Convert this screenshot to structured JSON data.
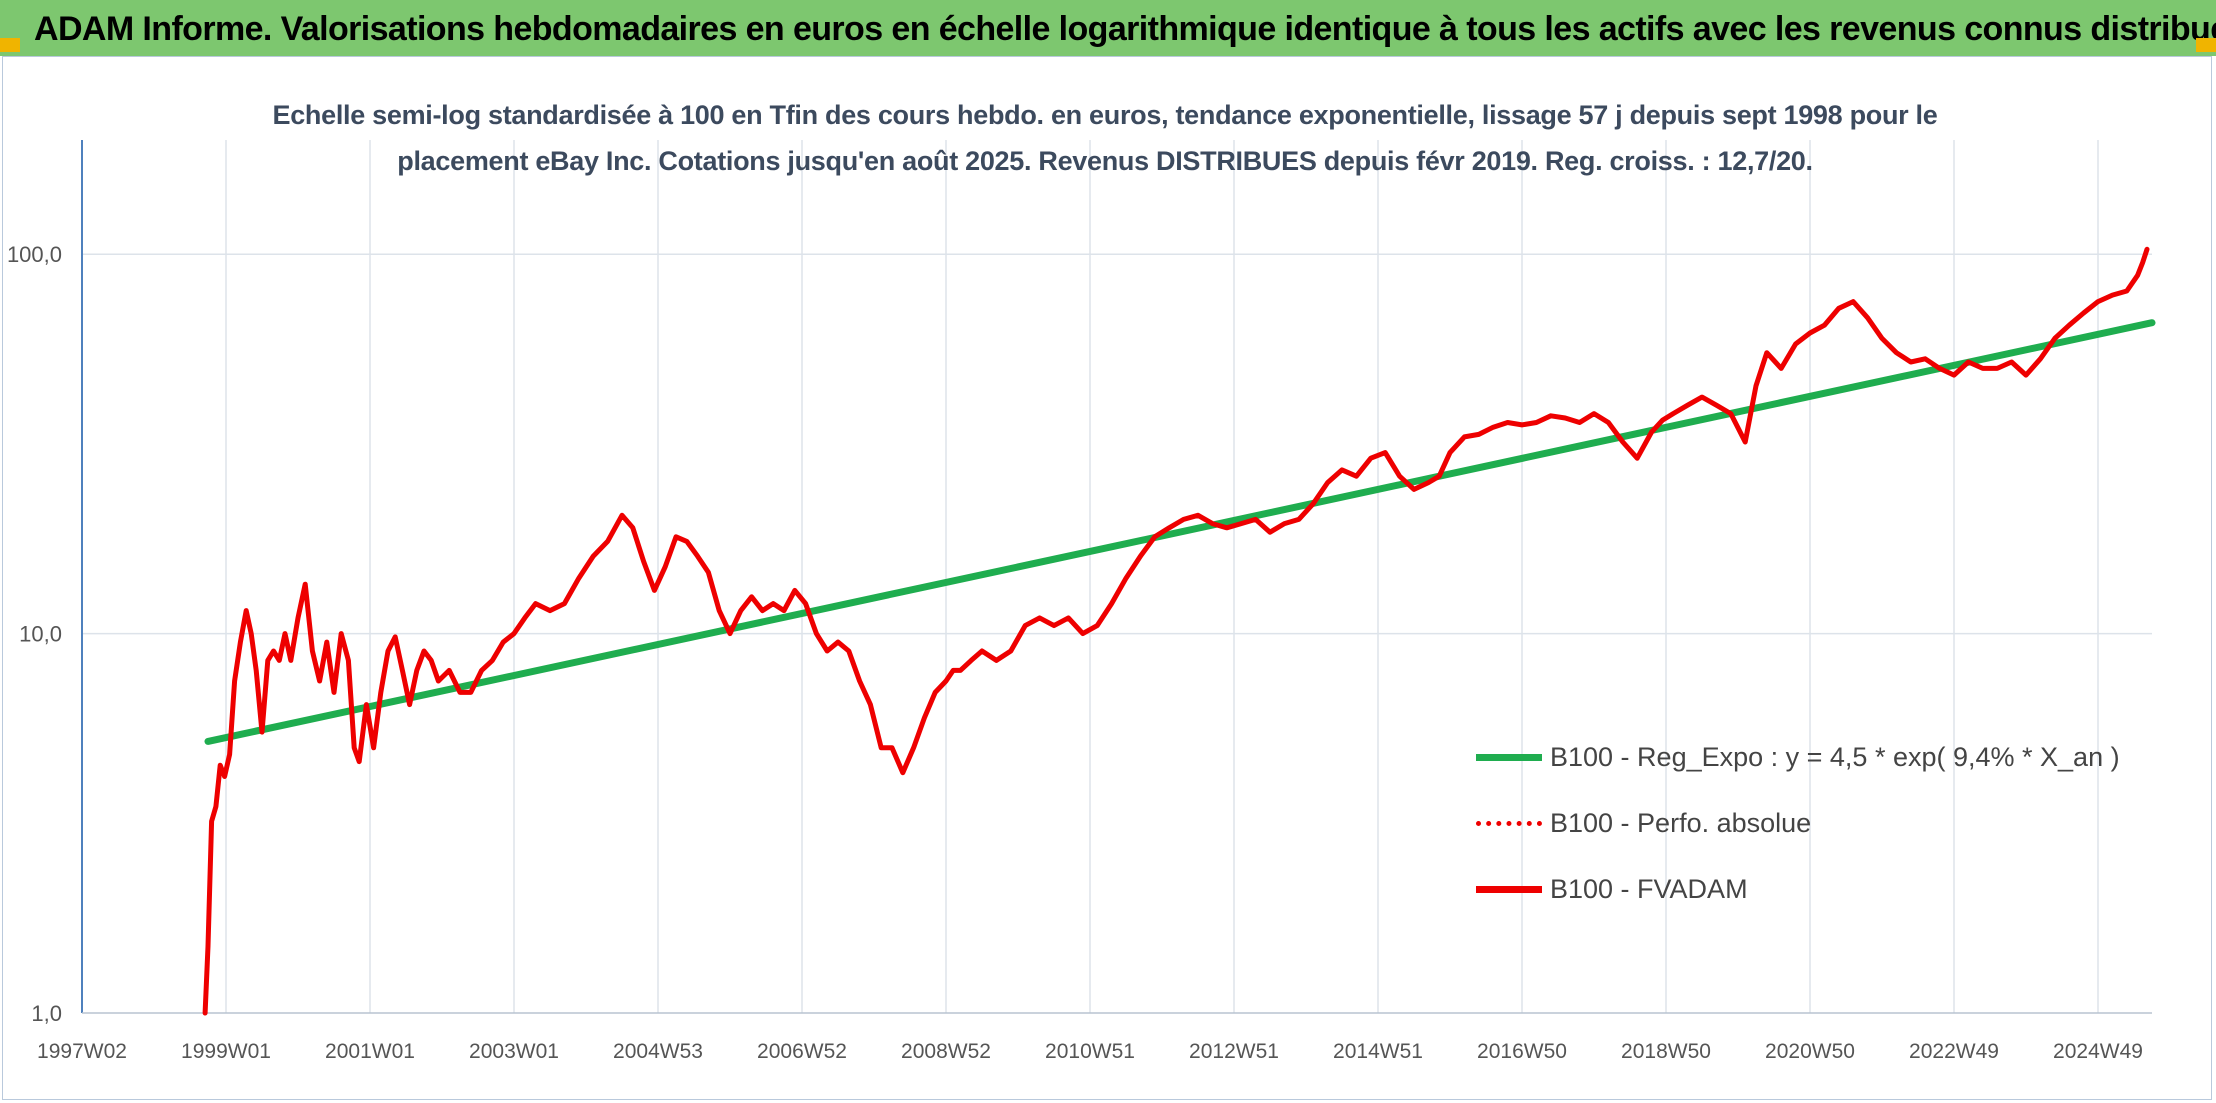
{
  "banner": {
    "title": "ADAM Informe. Valorisations hebdomadaires en euros en échelle logarithmique identique à tous les actifs avec les revenus connus distribués"
  },
  "colors": {
    "banner_bg": "#7dc76f",
    "regression": "#1fad4f",
    "fvadam": "#ee0000",
    "perfo": "#ee0000",
    "corner_accent": "#f0b400"
  },
  "chart_data": {
    "type": "line",
    "title": "Echelle semi-log standardisée à 100 en Tfin des cours hebdo. en euros, tendance exponentielle, lissage 57 j depuis sept 1998 pour le placement eBay Inc. Cotations jusqu'en août 2025. Revenus DISTRIBUES depuis févr 2019. Reg. croiss. : 12,7/20.",
    "title_lines": [
      "Echelle semi-log standardisée à 100 en Tfin des cours hebdo. en euros, tendance exponentielle, lissage 57 j depuis sept 1998 pour le",
      "placement eBay Inc. Cotations jusqu'en août 2025. Revenus DISTRIBUES depuis févr 2019. Reg. croiss. : 12,7/20."
    ],
    "y_scale": "log",
    "ylim": [
      1,
      200
    ],
    "y_ticks": [
      1,
      10,
      100
    ],
    "y_tick_labels": [
      "1,0",
      "10,0",
      "100,0"
    ],
    "xlim": [
      1997.0,
      2025.75
    ],
    "x_ticks": [
      1997.0,
      1999.0,
      2001.0,
      2003.0,
      2005.0,
      2007.0,
      2009.0,
      2011.0,
      2013.0,
      2015.0,
      2017.0,
      2019.0,
      2021.0,
      2023.0,
      2025.0
    ],
    "x_tick_labels": [
      "1997W02",
      "1999W01",
      "2001W01",
      "2003W01",
      "2004W53",
      "2006W52",
      "2008W52",
      "2010W51",
      "2012W51",
      "2014W51",
      "2016W50",
      "2018W50",
      "2020W50",
      "2022W49",
      "2024W49"
    ],
    "grid": "vertical",
    "legend_position": "right-bottom",
    "legend": [
      {
        "label": "B100 - Reg_Expo : y = 4,5 * exp( 9,4% *  X_an )",
        "style": "solid",
        "color": "#1fad4f"
      },
      {
        "label": "B100 - Perfo. absolue",
        "style": "dotted",
        "color": "#ee0000"
      },
      {
        "label": "B100 - FVADAM",
        "style": "solid",
        "color": "#ee0000"
      }
    ],
    "series": [
      {
        "name": "B100 - Reg_Expo : y = 4,5 * exp( 9,4% *  X_an )",
        "kind": "regression",
        "x": [
          1998.75,
          2025.75
        ],
        "y": [
          5.2,
          66
        ]
      },
      {
        "name": "B100 - FVADAM",
        "kind": "price",
        "x": [
          1998.71,
          1998.75,
          1998.8,
          1998.86,
          1998.92,
          1998.98,
          1999.05,
          1999.12,
          1999.2,
          1999.28,
          1999.35,
          1999.42,
          1999.5,
          1999.58,
          1999.66,
          1999.74,
          1999.82,
          1999.9,
          2000.0,
          2000.1,
          2000.2,
          2000.3,
          2000.4,
          2000.5,
          2000.6,
          2000.7,
          2000.78,
          2000.85,
          2000.95,
          2001.05,
          2001.15,
          2001.25,
          2001.35,
          2001.45,
          2001.55,
          2001.65,
          2001.75,
          2001.85,
          2001.95,
          2002.1,
          2002.25,
          2002.4,
          2002.55,
          2002.7,
          2002.85,
          2003.0,
          2003.15,
          2003.3,
          2003.5,
          2003.7,
          2003.9,
          2004.1,
          2004.3,
          2004.5,
          2004.65,
          2004.8,
          2004.95,
          2005.1,
          2005.25,
          2005.4,
          2005.55,
          2005.7,
          2005.85,
          2006.0,
          2006.15,
          2006.3,
          2006.45,
          2006.6,
          2006.75,
          2006.9,
          2007.05,
          2007.2,
          2007.35,
          2007.5,
          2007.65,
          2007.8,
          2007.95,
          2008.1,
          2008.25,
          2008.4,
          2008.55,
          2008.7,
          2008.85,
          2009.0,
          2009.1,
          2009.2,
          2009.35,
          2009.5,
          2009.7,
          2009.9,
          2010.1,
          2010.3,
          2010.5,
          2010.7,
          2010.9,
          2011.1,
          2011.3,
          2011.5,
          2011.7,
          2011.9,
          2012.1,
          2012.3,
          2012.5,
          2012.7,
          2012.9,
          2013.1,
          2013.3,
          2013.5,
          2013.7,
          2013.9,
          2014.1,
          2014.3,
          2014.5,
          2014.7,
          2014.9,
          2015.1,
          2015.3,
          2015.5,
          2015.7,
          2015.85,
          2016.0,
          2016.2,
          2016.4,
          2016.6,
          2016.8,
          2017.0,
          2017.2,
          2017.4,
          2017.6,
          2017.8,
          2018.0,
          2018.2,
          2018.4,
          2018.6,
          2018.8,
          2018.95,
          2019.1,
          2019.3,
          2019.5,
          2019.7,
          2019.9,
          2020.1,
          2020.25,
          2020.4,
          2020.6,
          2020.8,
          2021.0,
          2021.2,
          2021.4,
          2021.6,
          2021.8,
          2022.0,
          2022.2,
          2022.4,
          2022.6,
          2022.8,
          2023.0,
          2023.2,
          2023.4,
          2023.6,
          2023.8,
          2024.0,
          2024.2,
          2024.4,
          2024.6,
          2024.8,
          2025.0,
          2025.2,
          2025.4,
          2025.55,
          2025.62,
          2025.68
        ],
        "y": [
          1.0,
          1.5,
          3.2,
          3.5,
          4.5,
          4.2,
          4.8,
          7.5,
          9.5,
          11.5,
          10.0,
          8.0,
          5.5,
          8.5,
          9.0,
          8.5,
          10.0,
          8.5,
          11.0,
          13.5,
          9.0,
          7.5,
          9.5,
          7.0,
          10.0,
          8.5,
          5.0,
          4.6,
          6.5,
          5.0,
          7.0,
          9.0,
          9.8,
          8.0,
          6.5,
          8.0,
          9.0,
          8.5,
          7.5,
          8.0,
          7.0,
          7.0,
          8.0,
          8.5,
          9.5,
          10.0,
          11.0,
          12.0,
          11.5,
          12.0,
          14.0,
          16.0,
          17.5,
          20.5,
          19.0,
          15.5,
          13.0,
          15.0,
          18.0,
          17.5,
          16.0,
          14.5,
          11.5,
          10.0,
          11.5,
          12.5,
          11.5,
          12.0,
          11.5,
          13.0,
          12.0,
          10.0,
          9.0,
          9.5,
          9.0,
          7.5,
          6.5,
          5.0,
          5.0,
          4.3,
          5.0,
          6.0,
          7.0,
          7.5,
          8.0,
          8.0,
          8.5,
          9.0,
          8.5,
          9.0,
          10.5,
          11.0,
          10.5,
          11.0,
          10.0,
          10.5,
          12.0,
          14.0,
          16.0,
          18.0,
          19.0,
          20.0,
          20.5,
          19.5,
          19.0,
          19.5,
          20.0,
          18.5,
          19.5,
          20.0,
          22.0,
          25.0,
          27.0,
          26.0,
          29.0,
          30.0,
          26.0,
          24.0,
          25.0,
          26.0,
          30.0,
          33.0,
          33.5,
          35.0,
          36.0,
          35.5,
          36.0,
          37.5,
          37.0,
          36.0,
          38.0,
          36.0,
          32.0,
          29.0,
          34.0,
          36.5,
          38.0,
          40.0,
          42.0,
          40.0,
          38.0,
          32.0,
          45.0,
          55.0,
          50.0,
          58.0,
          62.0,
          65.0,
          72.0,
          75.0,
          68.0,
          60.0,
          55.0,
          52.0,
          53.0,
          50.0,
          48.0,
          52.0,
          50.0,
          50.0,
          52.0,
          48.0,
          53.0,
          60.0,
          65.0,
          70.0,
          75.0,
          78.0,
          80.0,
          88.0,
          95.0,
          103.0
        ]
      }
    ]
  }
}
